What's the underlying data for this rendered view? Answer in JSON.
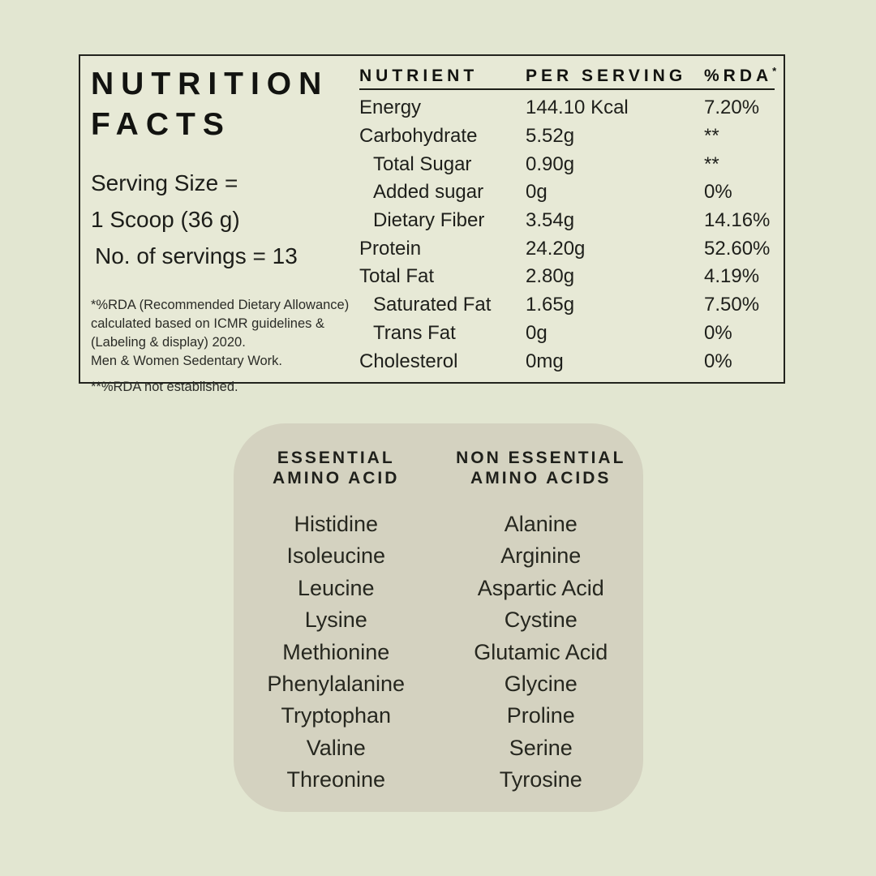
{
  "facts": {
    "title_line1": "NUTRITION",
    "title_line2": "FACTS",
    "serving": {
      "line1": "Serving Size =",
      "line2": "1 Scoop (36 g)",
      "line3": "No. of servings = 13"
    },
    "footnote1_lines": [
      "*%RDA (Recommended Dietary Allowance)",
      "calculated based on ICMR guidelines &",
      "(Labeling & display) 2020.",
      "Men & Women Sedentary Work."
    ],
    "footnote2": "**%RDA not established.",
    "table": {
      "headers": {
        "nutrient": "NUTRIENT",
        "per_serving": "PER SERVING",
        "rda": "%RDA",
        "rda_marker": "*"
      },
      "rows": [
        {
          "nutrient": "Energy",
          "per_serving": "144.10 Kcal",
          "rda": "7.20%"
        },
        {
          "nutrient": "Carbohydrate",
          "per_serving": "5.52g",
          "rda": "**"
        },
        {
          "nutrient": "Total Sugar",
          "per_serving": "0.90g",
          "rda": "**"
        },
        {
          "nutrient": "Added sugar",
          "per_serving": "0g",
          "rda": "0%"
        },
        {
          "nutrient": "Dietary Fiber",
          "per_serving": "3.54g",
          "rda": "14.16%"
        },
        {
          "nutrient": "Protein",
          "per_serving": "24.20g",
          "rda": "52.60%"
        },
        {
          "nutrient": "Total Fat",
          "per_serving": "2.80g",
          "rda": "4.19%"
        },
        {
          "nutrient": "Saturated Fat",
          "per_serving": "1.65g",
          "rda": "7.50%"
        },
        {
          "nutrient": "Trans Fat",
          "per_serving": "0g",
          "rda": "0%"
        },
        {
          "nutrient": "Cholesterol",
          "per_serving": "0mg",
          "rda": "0%"
        }
      ]
    }
  },
  "amino": {
    "essential": {
      "header_line1": "ESSENTIAL",
      "header_line2": "AMINO ACID",
      "items": [
        "Histidine",
        "Isoleucine",
        "Leucine",
        "Lysine",
        "Methionine",
        "Phenylalanine",
        "Tryptophan",
        "Valine",
        "Threonine"
      ]
    },
    "non_essential": {
      "header_line1": "NON ESSENTIAL",
      "header_line2": "AMINO ACIDS",
      "items": [
        "Alanine",
        "Arginine",
        "Aspartic Acid",
        "Cystine",
        "Glutamic Acid",
        "Glycine",
        "Proline",
        "Serine",
        "Tyrosine"
      ]
    }
  },
  "colors": {
    "page_bg": "#e2e6d1",
    "box_bg": "#e7e9d6",
    "panel_bg": "#d4d2c0",
    "border": "#22231e",
    "text": "#1d1e1a"
  }
}
